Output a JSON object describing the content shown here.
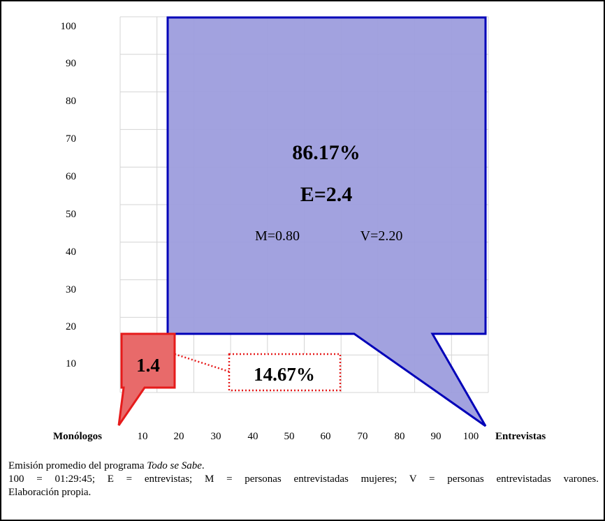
{
  "chart_data": {
    "type": "area",
    "y_ticks": [
      "100",
      "90",
      "80",
      "70",
      "60",
      "50",
      "40",
      "30",
      "20",
      "10"
    ],
    "x_ticks": [
      "10",
      "20",
      "30",
      "40",
      "50",
      "60",
      "70",
      "80",
      "90",
      "100"
    ],
    "x_left_label": "Monólogos",
    "x_right_label": "Entrevistas",
    "ylim": [
      0,
      100
    ],
    "xlim": [
      0,
      100
    ],
    "grid": true,
    "regions": [
      {
        "id": "entrevistas",
        "percent_label": "86.17%",
        "avg_label": "E=2.4",
        "women_label": "M=0.80",
        "men_label": "V=2.20",
        "x_range": [
          13,
          100
        ],
        "y_range": [
          15,
          100
        ],
        "value_percent": 86.17,
        "fill": "#9d9ddd",
        "stroke": "#0000b8"
      },
      {
        "id": "monologos",
        "avg_label": "1.4",
        "percent_label": "14.67%",
        "value_percent": 14.67,
        "fill": "#e86a6a",
        "stroke": "#e61b1b"
      }
    ]
  },
  "caption": {
    "line1_pre": "Emisión promedio del programa ",
    "line1_italic": "Todo se Sabe",
    "line1_post": ".",
    "line2": "100 = 01:29:45; E = entrevistas; M = personas entrevistadas mujeres; V = personas entrevistadas varones.",
    "line3": "Elaboración propia."
  }
}
